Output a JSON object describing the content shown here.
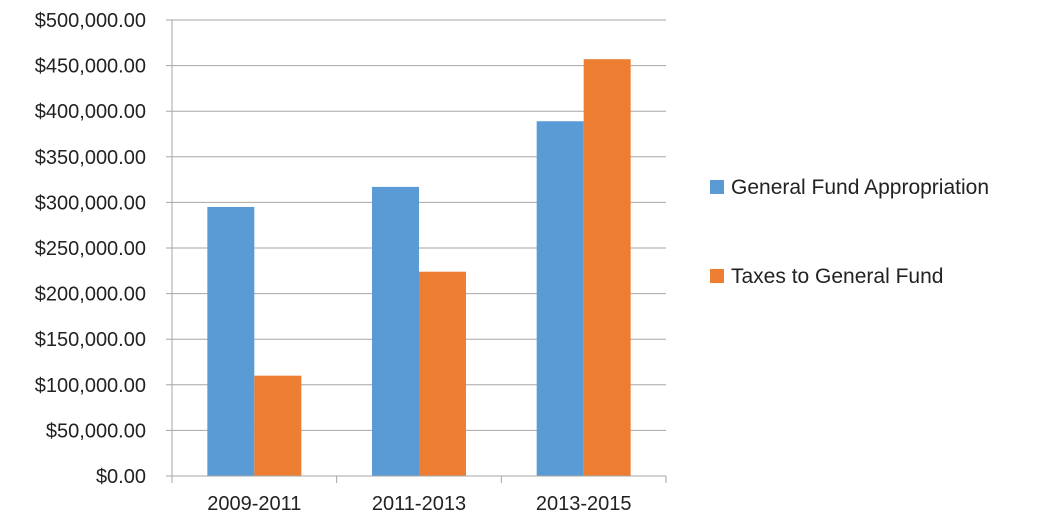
{
  "chart_data": {
    "type": "bar",
    "categories": [
      "2009-2011",
      "2011-2013",
      "2013-2015"
    ],
    "series": [
      {
        "name": "General Fund Appropriation",
        "color": "#5b9bd5",
        "values": [
          295000,
          317000,
          389000
        ]
      },
      {
        "name": "Taxes to General Fund",
        "color": "#ed7d31",
        "values": [
          110000,
          224000,
          457000
        ]
      }
    ],
    "y_ticks": [
      {
        "value": 0,
        "label": "$0.00"
      },
      {
        "value": 50000,
        "label": "$50,000.00"
      },
      {
        "value": 100000,
        "label": "$100,000.00"
      },
      {
        "value": 150000,
        "label": "$150,000.00"
      },
      {
        "value": 200000,
        "label": "$200,000.00"
      },
      {
        "value": 250000,
        "label": "$250,000.00"
      },
      {
        "value": 300000,
        "label": "$300,000.00"
      },
      {
        "value": 350000,
        "label": "$350,000.00"
      },
      {
        "value": 400000,
        "label": "$400,000.00"
      },
      {
        "value": 450000,
        "label": "$450,000.00"
      },
      {
        "value": 500000,
        "label": "$500,000.00"
      }
    ],
    "ylim": [
      0,
      500000
    ],
    "grid": true,
    "legend_position": "right",
    "gridline_color": "#a6a6a6"
  }
}
